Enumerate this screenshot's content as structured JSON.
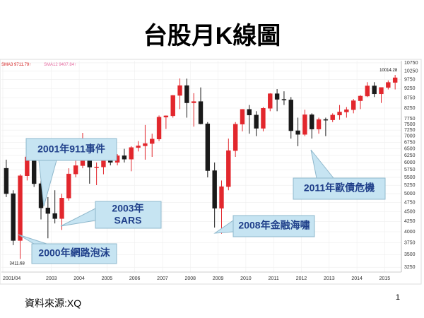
{
  "chart_data": {
    "type": "candlestick",
    "title": "台股月K線圖",
    "legend_labels": [
      "SMA3 9711.79↑",
      "SMA12 9407.84↑"
    ],
    "x": [
      2001.375,
      2001.625,
      2001.875,
      2002.125,
      2002.375,
      2002.625,
      2002.875,
      2003.125,
      2003.375,
      2003.625,
      2003.875,
      2004.125,
      2004.375,
      2004.625,
      2004.875,
      2005.125,
      2005.375,
      2005.625,
      2005.875,
      2006.125,
      2006.375,
      2006.625,
      2006.875,
      2007.125,
      2007.375,
      2007.625,
      2007.875,
      2008.125,
      2008.375,
      2008.625,
      2008.875,
      2009.125,
      2009.375,
      2009.625,
      2009.875,
      2010.125,
      2010.375,
      2010.625,
      2010.875,
      2011.125,
      2011.375,
      2011.625,
      2011.875,
      2012.125,
      2012.375,
      2012.625,
      2012.875,
      2013.125,
      2013.375,
      2013.625,
      2013.875,
      2014.125,
      2014.375,
      2014.625,
      2014.875,
      2015.125,
      2015.375
    ],
    "open": [
      5800,
      5000,
      3800,
      5551,
      6200,
      5300,
      4600,
      4452,
      4321,
      4872,
      5611,
      5890,
      6522,
      5840,
      5845,
      6140,
      6005,
      6241,
      6118,
      6548,
      6613,
      6704,
      6883,
      7823,
      7884,
      8883,
      9411,
      8506,
      8572,
      7524,
      5720,
      4591,
      5210,
      6432,
      7509,
      8188,
      7920,
      7329,
      8238,
      8973,
      8683,
      8653,
      7225,
      7072,
      7933,
      7296,
      7715,
      7700,
      7919,
      8062,
      8173,
      8612,
      8849,
      9393,
      8966,
      9307,
      9586
    ],
    "high": [
      6100,
      5100,
      5600,
      6400,
      6484,
      5400,
      4900,
      5100,
      5000,
      5800,
      6100,
      7135,
      6700,
      6000,
      6100,
      6400,
      6300,
      6500,
      6600,
      6800,
      7474,
      7100,
      7900,
      7900,
      8900,
      9809,
      9800,
      9000,
      9309,
      7600,
      6000,
      5400,
      6900,
      7600,
      8200,
      8400,
      8100,
      8300,
      9000,
      9220,
      9100,
      8800,
      7800,
      8170,
      8000,
      7800,
      7800,
      8000,
      8400,
      8300,
      8700,
      8900,
      9600,
      9600,
      9300,
      9700,
      10014.28
    ],
    "low": [
      4900,
      3700,
      3411.68,
      5400,
      5200,
      4300,
      3850,
      4200,
      4044,
      4800,
      5500,
      5800,
      5300,
      5255,
      5600,
      5900,
      5900,
      6000,
      5700,
      6400,
      6100,
      6200,
      6800,
      7300,
      7800,
      8200,
      7800,
      7400,
      7500,
      5500,
      4100,
      3955,
      5100,
      6200,
      7200,
      7100,
      7000,
      7200,
      8100,
      8100,
      8400,
      6900,
      6600,
      7000,
      6900,
      7100,
      7000,
      7600,
      7700,
      7800,
      8000,
      8200,
      8800,
      8800,
      8500,
      9200,
      9200
    ],
    "close": [
      5000,
      3800,
      5551,
      6200,
      5300,
      4600,
      4452,
      4321,
      4872,
      5611,
      5890,
      6522,
      5840,
      5845,
      6140,
      6005,
      6241,
      6118,
      6548,
      6613,
      6704,
      6883,
      7823,
      7884,
      8883,
      9411,
      8506,
      8572,
      7524,
      5720,
      4591,
      5210,
      6432,
      7509,
      8188,
      7920,
      7329,
      8238,
      8973,
      8683,
      8653,
      7225,
      7072,
      7933,
      7296,
      7715,
      7700,
      7919,
      8062,
      8173,
      8612,
      8849,
      9393,
      8966,
      9307,
      9586,
      9850
    ],
    "up_color": "#e2272d",
    "down_color": "#1a1a1a",
    "log_scale": true,
    "grid": true,
    "ylim": [
      3160,
      10880
    ],
    "yticks": [
      3250,
      3500,
      3750,
      4000,
      4250,
      4500,
      4750,
      5000,
      5250,
      5500,
      5750,
      6000,
      6250,
      6500,
      6750,
      7000,
      7250,
      7500,
      7750,
      8250,
      8750,
      9250,
      9750,
      10250,
      10750
    ],
    "xlim": [
      2001.2,
      2015.6
    ],
    "xticks": [
      {
        "value": 2001.25,
        "label": "2001/04"
      },
      2003,
      2004,
      2005,
      2006,
      2007,
      2008,
      2009,
      2010,
      2011,
      2012,
      2013,
      2014,
      2015
    ],
    "min_label": 3411.68,
    "max_label": 10014.28,
    "annotations": [
      {
        "text": "2001年911事件"
      },
      {
        "lines": [
          "2003年",
          "SARS"
        ]
      },
      {
        "text": "2000年網路泡沫"
      },
      {
        "text": "2008年金融海嘯"
      },
      {
        "text": "2011年歐債危機"
      }
    ]
  },
  "footer": {
    "source": "資料來源:XQ",
    "page": 1
  }
}
